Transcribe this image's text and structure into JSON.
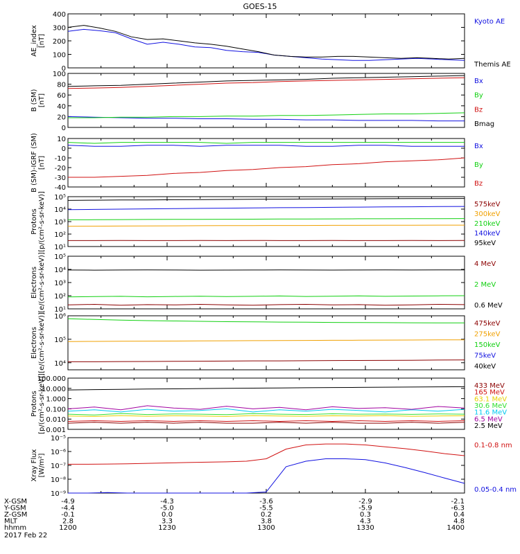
{
  "title": "GOES-15",
  "colors": {
    "black": "#000000",
    "red": "#d01010",
    "green": "#10d010",
    "blue": "#1010e0",
    "orange": "#f0a000",
    "cyan": "#00c8f0",
    "darkred": "#8b0000",
    "purple": "#a000a0",
    "gold": "#e8d000",
    "ltgreen": "#30e030"
  },
  "chart_data": [
    {
      "type": "line",
      "ylabel": "AE_index\n[nT]",
      "ylim": [
        0,
        400
      ],
      "yticks": [
        "0",
        "100",
        "200",
        "300",
        "400"
      ],
      "series": [
        {
          "name": "Kyoto AE",
          "color": "blue",
          "values": [
            270,
            285,
            275,
            260,
            215,
            175,
            190,
            175,
            155,
            150,
            130,
            120,
            115,
            95,
            85,
            75,
            65,
            60,
            55,
            55,
            60,
            65,
            70,
            65,
            60,
            55
          ]
        },
        {
          "name": "Themis AE",
          "color": "black",
          "values": [
            300,
            315,
            295,
            270,
            230,
            210,
            215,
            200,
            185,
            175,
            160,
            140,
            120,
            95,
            85,
            80,
            80,
            85,
            85,
            80,
            75,
            70,
            75,
            70,
            65,
            70
          ]
        }
      ]
    },
    {
      "type": "line",
      "ylabel": "B (SM)\n[nT]",
      "ylim": [
        0,
        100
      ],
      "yticks": [
        "0",
        "20",
        "40",
        "60",
        "80",
        "100"
      ],
      "series": [
        {
          "name": "Bx",
          "color": "blue",
          "values": [
            20,
            19,
            18,
            17,
            17,
            16,
            16,
            15,
            15,
            14,
            14,
            13,
            13,
            13,
            12,
            12
          ]
        },
        {
          "name": "By",
          "color": "green",
          "values": [
            18,
            18,
            19,
            19,
            20,
            20,
            21,
            21,
            22,
            22,
            23,
            24,
            25,
            25,
            26,
            27
          ]
        },
        {
          "name": "Bz",
          "color": "red",
          "values": [
            72,
            73,
            74,
            76,
            78,
            80,
            82,
            83,
            85,
            86,
            87,
            88,
            89,
            90,
            91,
            92
          ]
        },
        {
          "name": "Bmag",
          "color": "black",
          "values": [
            76,
            77,
            78,
            80,
            82,
            84,
            86,
            87,
            88,
            89,
            91,
            92,
            93,
            94,
            95,
            96
          ]
        }
      ]
    },
    {
      "type": "line",
      "ylabel": "B (SM)-IGRF (SM)\n[nT]",
      "ylim": [
        -40,
        10
      ],
      "yticks": [
        "-40",
        "-30",
        "-20",
        "-10",
        "0",
        "10"
      ],
      "series": [
        {
          "name": "Bx",
          "color": "blue",
          "values": [
            3,
            2,
            2,
            3,
            3,
            2,
            3,
            3,
            3,
            2,
            2,
            3,
            3,
            2,
            2,
            2
          ]
        },
        {
          "name": "By",
          "color": "green",
          "values": [
            6,
            5,
            6,
            6,
            6,
            6,
            5,
            6,
            6,
            6,
            6,
            6,
            6,
            6,
            6,
            6
          ]
        },
        {
          "name": "Bz",
          "color": "red",
          "values": [
            -30,
            -30,
            -29,
            -28,
            -26,
            -25,
            -23,
            -22,
            -20,
            -19,
            -17,
            -16,
            -14,
            -13,
            -12,
            -10
          ]
        }
      ]
    },
    {
      "type": "line",
      "ylabel": "Protons\n[p/(cm²-s-sr-keV)]",
      "yscale": "log",
      "ylim": [
        10,
        100000
      ],
      "yticks": [
        "10¹",
        "10²",
        "10³",
        "10⁴",
        "10⁵"
      ],
      "series": [
        {
          "name": "575keV",
          "color": "darkred",
          "values": [
            30,
            30,
            31,
            30,
            30,
            31,
            30,
            31,
            30,
            30,
            31,
            30,
            30,
            31,
            30,
            31
          ]
        },
        {
          "name": "300keV",
          "color": "orange",
          "values": [
            420,
            430,
            440,
            450,
            460,
            470,
            480,
            480,
            490,
            490,
            500,
            500,
            510,
            510,
            520,
            520
          ]
        },
        {
          "name": "210keV",
          "color": "green",
          "values": [
            1400,
            1420,
            1450,
            1480,
            1500,
            1520,
            1550,
            1570,
            1600,
            1620,
            1650,
            1680,
            1700,
            1720,
            1740,
            1760
          ]
        },
        {
          "name": "140keV",
          "color": "blue",
          "values": [
            9000,
            9500,
            10000,
            10500,
            11000,
            11500,
            12000,
            12500,
            13000,
            13500,
            14000,
            14500,
            15000,
            15500,
            16000,
            16500
          ]
        },
        {
          "name": "95keV",
          "color": "black",
          "values": [
            50000,
            52000,
            54000,
            55000,
            57000,
            58000,
            60000,
            62000,
            63000,
            65000,
            66000,
            67000,
            69000,
            70000,
            71000,
            72000
          ]
        }
      ]
    },
    {
      "type": "line",
      "ylabel": "Electrons\n[e/(cm²-s-sr-keV)]",
      "yscale": "log",
      "ylim": [
        10,
        100000
      ],
      "yticks": [
        "10¹",
        "10²",
        "10³",
        "10⁴",
        "10⁵"
      ],
      "series": [
        {
          "name": "4 MeV",
          "color": "darkred",
          "values": [
            20,
            22,
            19,
            21,
            20,
            22,
            20,
            19,
            21,
            22,
            20,
            21,
            19,
            20,
            22,
            21
          ]
        },
        {
          "name": "2 MeV",
          "color": "green",
          "values": [
            80,
            85,
            90,
            82,
            88,
            92,
            86,
            90,
            95,
            88,
            92,
            96,
            90,
            94,
            98,
            100
          ]
        },
        {
          "name": "0.6 MeV",
          "color": "black",
          "values": [
            9000,
            8800,
            9000,
            9200,
            9000,
            8800,
            8900,
            9000,
            9100,
            9000,
            8900,
            9000,
            9100,
            9000,
            9200,
            9100
          ]
        }
      ]
    },
    {
      "type": "line",
      "ylabel": "Electrons\n[e/(cm²-s-sr-keV)]",
      "yscale": "log",
      "ylim": [
        5000,
        1000000
      ],
      "yticks": [
        "10⁴",
        "10⁵",
        "10⁶"
      ],
      "series": [
        {
          "name": "475keV",
          "color": "darkred",
          "values": [
            11000,
            11000,
            11200,
            11300,
            11500,
            11600,
            11800,
            12000,
            12000,
            12200,
            12400,
            12500,
            12600,
            12800,
            13000,
            13100
          ]
        },
        {
          "name": "275keV",
          "color": "orange",
          "values": [
            80000,
            81000,
            82000,
            83000,
            84000,
            85000,
            86000,
            87000,
            88000,
            89000,
            90000,
            91000,
            92000,
            93000,
            94000,
            95000
          ]
        },
        {
          "name": "150keV",
          "color": "green",
          "values": [
            750000,
            700000,
            650000,
            620000,
            600000,
            580000,
            560000,
            550000,
            540000,
            530000,
            520000,
            515000,
            510000,
            505000,
            500000,
            500000
          ]
        },
        {
          "name": "75keV",
          "color": "blue",
          "values": []
        },
        {
          "name": "40keV",
          "color": "black",
          "values": []
        }
      ]
    },
    {
      "type": "line",
      "ylabel": "Protons\n[p/(cm²-s-sr-keV)]",
      "yscale": "log",
      "ylim": [
        0.001,
        100
      ],
      "yticks": [
        "0.001",
        "0.010",
        "0.100",
        "1.000",
        "10.000",
        "100.000"
      ],
      "series": [
        {
          "name": "433 MeV",
          "color": "darkred",
          "values": [
            0.004,
            0.005,
            0.004,
            0.005,
            0.004,
            0.005,
            0.004,
            0.004,
            0.005,
            0.004,
            0.005,
            0.004,
            0.004,
            0.005,
            0.004,
            0.005
          ]
        },
        {
          "name": "165 MeV",
          "color": "red",
          "values": [
            0.006,
            0.007,
            0.006,
            0.007,
            0.006,
            0.007,
            0.006,
            0.007,
            0.006,
            0.007,
            0.006,
            0.007,
            0.006,
            0.007,
            0.006,
            0.007
          ]
        },
        {
          "name": "63.1 MeV",
          "color": "gold",
          "values": [
            0.02,
            0.018,
            0.022,
            0.019,
            0.021,
            0.02,
            0.018,
            0.022,
            0.02,
            0.019,
            0.021,
            0.02,
            0.022,
            0.019,
            0.02,
            0.021
          ]
        },
        {
          "name": "30.6 MeV",
          "color": "ltgreen",
          "values": [
            0.03,
            0.025,
            0.035,
            0.028,
            0.032,
            0.03,
            0.027,
            0.034,
            0.03,
            0.028,
            0.033,
            0.03,
            0.031,
            0.029,
            0.032,
            0.03
          ]
        },
        {
          "name": "11.6 MeV",
          "color": "cyan",
          "values": [
            0.06,
            0.08,
            0.05,
            0.09,
            0.06,
            0.07,
            0.1,
            0.05,
            0.08,
            0.06,
            0.09,
            0.07,
            0.05,
            0.08,
            0.06,
            0.09
          ]
        },
        {
          "name": "6.5 MeV",
          "color": "purple",
          "values": [
            0.1,
            0.15,
            0.08,
            0.2,
            0.12,
            0.09,
            0.18,
            0.1,
            0.14,
            0.08,
            0.16,
            0.11,
            0.13,
            0.09,
            0.17,
            0.12
          ]
        },
        {
          "name": "2.5 MeV",
          "color": "black",
          "values": [
            7,
            7.5,
            8,
            8.5,
            9,
            9.5,
            10,
            10.5,
            11,
            11.5,
            12,
            12.5,
            13,
            13.5,
            14,
            14.5
          ]
        }
      ]
    },
    {
      "type": "line",
      "ylabel": "Xray Flux\n[W/m²]",
      "yscale": "log",
      "ylim": [
        1e-09,
        1e-05
      ],
      "yticks": [
        "10⁻⁹",
        "10⁻⁸",
        "10⁻⁷",
        "10⁻⁶",
        "10⁻⁵"
      ],
      "series": [
        {
          "name": "0.1-0.8 nm",
          "color": "red",
          "values": [
            1.2e-07,
            1.2e-07,
            1.25e-07,
            1.3e-07,
            1.4e-07,
            1.5e-07,
            1.6e-07,
            1.7e-07,
            1.8e-07,
            2e-07,
            3e-07,
            1.5e-06,
            3e-06,
            3.5e-06,
            3.5e-06,
            3e-06,
            2.2e-06,
            1.6e-06,
            1.1e-06,
            7e-07,
            5e-07
          ]
        },
        {
          "name": "0.05-0.4 nm",
          "color": "blue",
          "values": [
            1e-09,
            1e-09,
            1.1e-09,
            1e-09,
            1e-09,
            1e-09,
            1e-09,
            1e-09,
            1e-09,
            1e-09,
            1.2e-09,
            8e-08,
            2e-07,
            3e-07,
            3e-07,
            2.6e-07,
            1.5e-07,
            7e-08,
            3e-08,
            1.2e-08,
            5e-09
          ]
        }
      ]
    }
  ],
  "axis": {
    "rows": [
      {
        "label": "X-GSM",
        "values": [
          "-4.9",
          "-4.3",
          "-3.6",
          "-2.9",
          "-2.1"
        ]
      },
      {
        "label": "Y-GSM",
        "values": [
          "-4.4",
          "-5.0",
          "-5.5",
          "-5.9",
          "-6.3"
        ]
      },
      {
        "label": "Z-GSM",
        "values": [
          "-0.1",
          "0.0",
          "0.2",
          "0.3",
          "0.4"
        ]
      },
      {
        "label": "MLT",
        "values": [
          "2.8",
          "3.3",
          "3.8",
          "4.3",
          "4.8"
        ]
      },
      {
        "label": "hhmm",
        "values": [
          "1200",
          "1230",
          "1300",
          "1330",
          "1400"
        ]
      }
    ],
    "date": "2017 Feb 22"
  }
}
